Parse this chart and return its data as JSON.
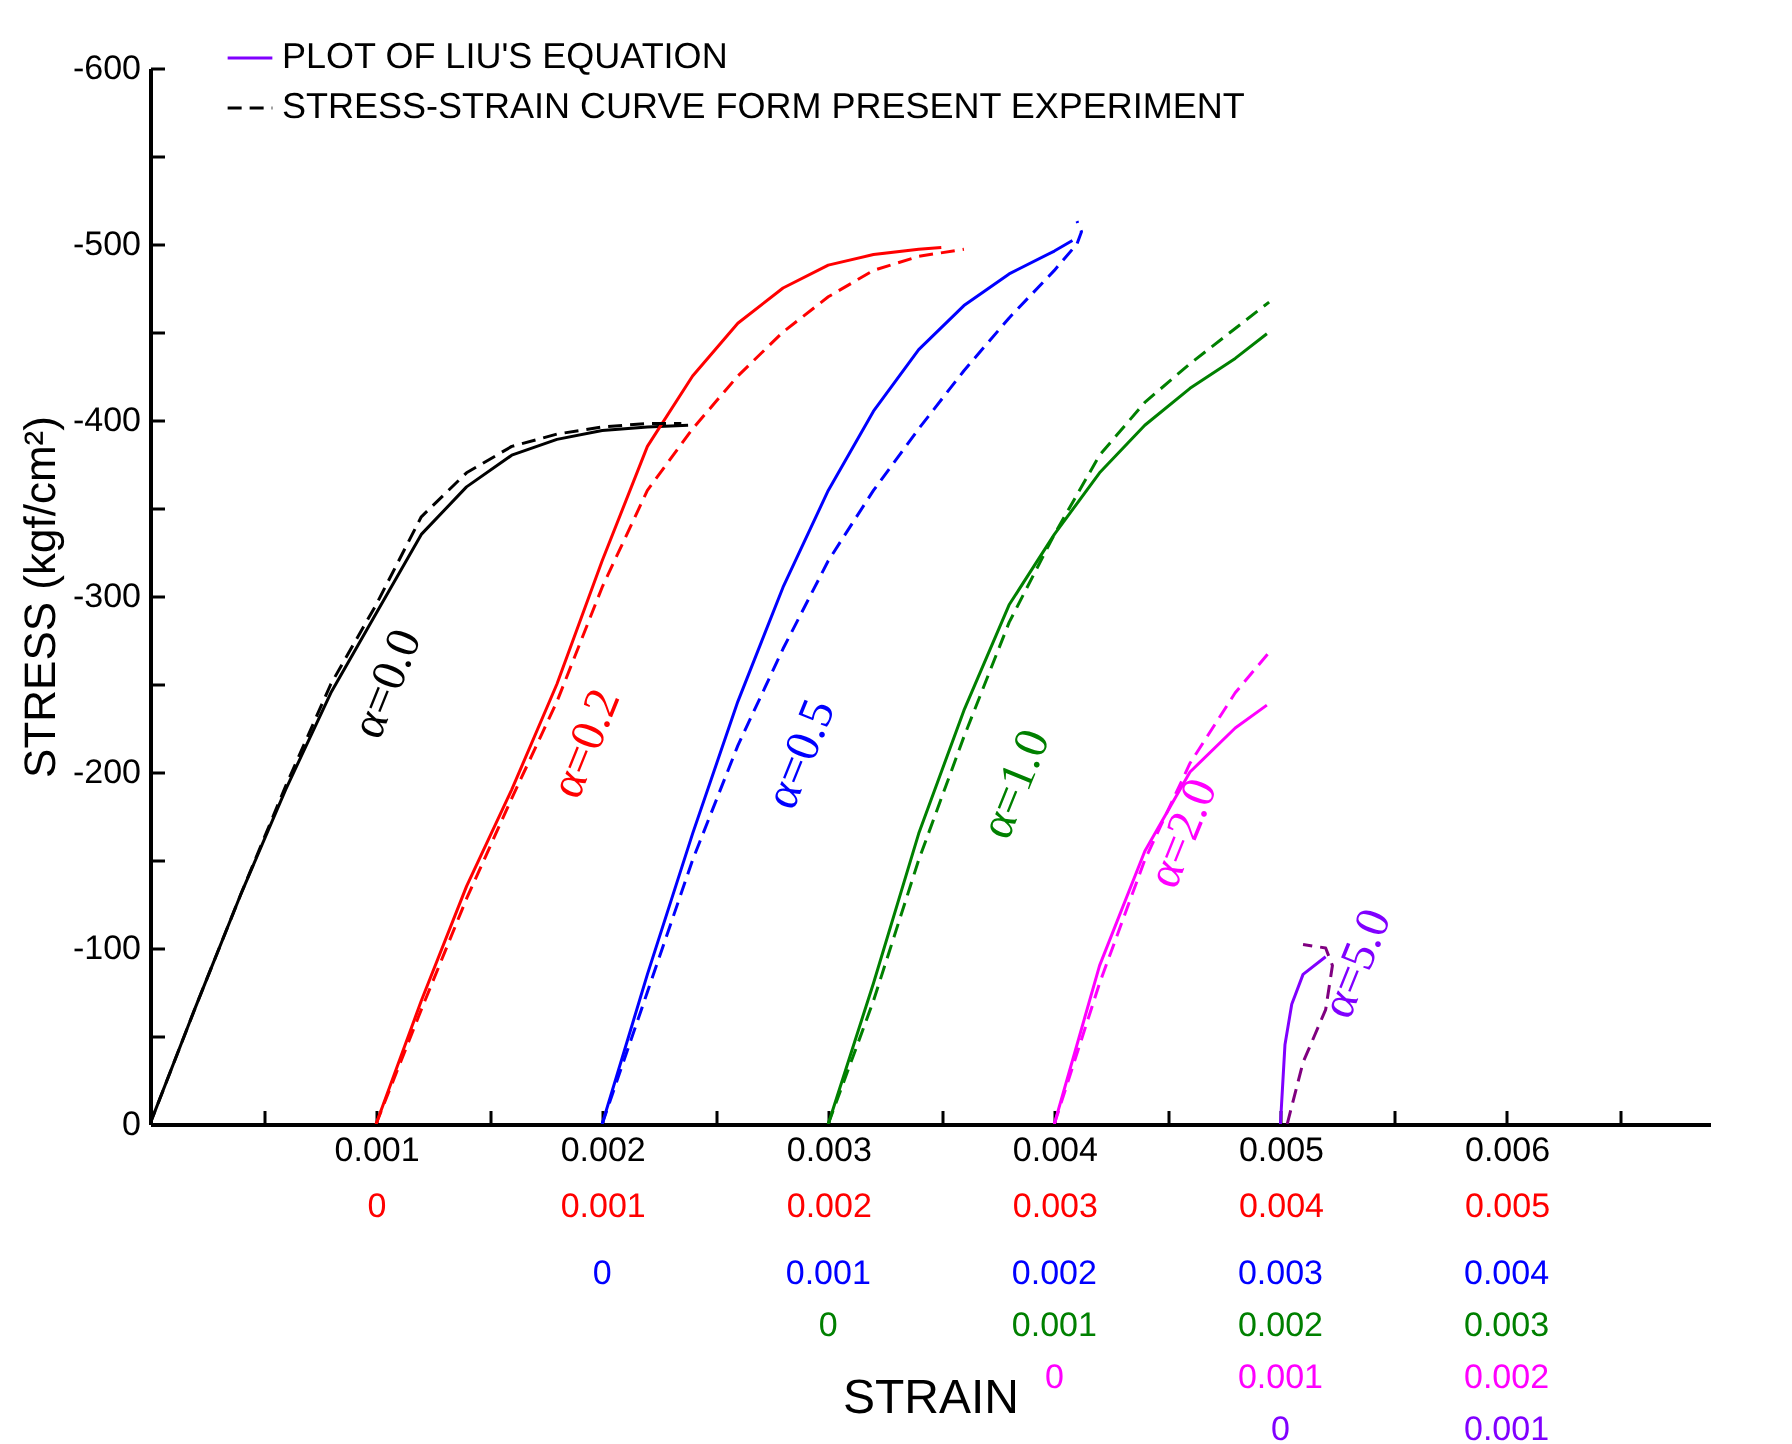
{
  "chart_data": {
    "type": "line",
    "xlabel": "STRAIN",
    "ylabel": "STRESS (kgf/cm²)",
    "xlim": [
      0,
      0.0069
    ],
    "ylim": [
      0,
      -600
    ],
    "xticks": [
      {
        "value": 0.0005,
        "label": null
      },
      0.001,
      {
        "value": 0.0015,
        "label": null
      },
      0.002,
      {
        "value": 0.0025,
        "label": null
      },
      0.003,
      {
        "value": 0.0035,
        "label": null
      },
      0.004,
      {
        "value": 0.0045,
        "label": null
      },
      0.005,
      {
        "value": 0.0055,
        "label": null
      },
      0.006,
      {
        "value": 0.0065,
        "label": null
      }
    ],
    "x2lim": [
      -0.001,
      0.0059
    ],
    "x2ticks": [
      0,
      0.001,
      0.002,
      0.003,
      0.004,
      0.005
    ],
    "yticks": [
      0,
      {
        "value": -50,
        "label": null
      },
      -100,
      {
        "value": -150,
        "label": null
      },
      -200,
      {
        "value": -250,
        "label": null
      },
      -300,
      {
        "value": -350,
        "label": null
      },
      -400,
      {
        "value": -450,
        "label": null
      },
      -500,
      {
        "value": -550,
        "label": null
      },
      -600
    ],
    "legend": "top",
    "grid": false,
    "series": [
      {
        "color": "#000000",
        "line_style": "solid",
        "x": [
          0,
          0.0002,
          0.0004,
          0.0006,
          0.0008,
          0.001,
          0.0012,
          0.0014,
          0.0016,
          0.0018,
          0.002,
          0.0022,
          0.00238
        ],
        "values": [
          0,
          -66,
          -130,
          -190,
          -245,
          -290,
          -335,
          -362,
          -380,
          -389,
          -394,
          -396,
          -397
        ]
      },
      {
        "color": "#ff0000",
        "line_style": "solid",
        "x": [
          0.001,
          0.0012,
          0.0014,
          0.0016,
          0.0018,
          0.002,
          0.0022,
          0.0024,
          0.0026,
          0.0028,
          0.003,
          0.0032,
          0.0034,
          0.0035
        ],
        "values": [
          0,
          -70,
          -135,
          -190,
          -250,
          -320,
          -385,
          -425,
          -455,
          -475,
          -488,
          -494,
          -497,
          -498
        ]
      },
      {
        "color": "#0000ff",
        "line_style": "solid",
        "x": [
          0.002,
          0.0022,
          0.0024,
          0.0026,
          0.0028,
          0.003,
          0.0032,
          0.0034,
          0.0036,
          0.0038,
          0.004,
          0.00408
        ],
        "values": [
          0,
          -85,
          -165,
          -240,
          -305,
          -360,
          -405,
          -440,
          -465,
          -483,
          -496,
          -502
        ]
      },
      {
        "color": "#008000",
        "line_style": "solid",
        "x": [
          0.003,
          0.0032,
          0.0034,
          0.0036,
          0.0038,
          0.004,
          0.0042,
          0.0044,
          0.0046,
          0.0048,
          0.00494
        ],
        "values": [
          0,
          -80,
          -165,
          -235,
          -295,
          -335,
          -370,
          -397,
          -418,
          -435,
          -449
        ]
      },
      {
        "color": "#ff00ff",
        "line_style": "solid",
        "x": [
          0.004,
          0.0042,
          0.0044,
          0.0046,
          0.0048,
          0.00494
        ],
        "values": [
          0,
          -90,
          -155,
          -200,
          -225,
          -238
        ]
      },
      {
        "name": "PLOT OF LIU'S EQUATION",
        "color": "#8000ff",
        "line_style": "solid",
        "x": [
          0.005,
          0.00502,
          0.00505,
          0.0051,
          0.0052
        ],
        "values": [
          0,
          -45,
          -68,
          -85,
          -95
        ]
      },
      {
        "name": "STRESS-STRAIN CURVE FORM PRESENT EXPERIMENT",
        "color": "#000000",
        "line_style": "dashed",
        "x": [
          0,
          0.0002,
          0.0004,
          0.0006,
          0.0008,
          0.001,
          0.0012,
          0.0014,
          0.0016,
          0.0018,
          0.002,
          0.0022,
          0.00235
        ],
        "values": [
          0,
          -66,
          -130,
          -192,
          -250,
          -295,
          -345,
          -370,
          -385,
          -392,
          -396,
          -398,
          -398
        ]
      },
      {
        "color": "#ff0000",
        "line_style": "dashed",
        "x": [
          0.001,
          0.0012,
          0.0014,
          0.0016,
          0.0018,
          0.002,
          0.0022,
          0.0024,
          0.0026,
          0.0028,
          0.003,
          0.0032,
          0.0034,
          0.0036
        ],
        "values": [
          0,
          -65,
          -128,
          -185,
          -240,
          -305,
          -360,
          -395,
          -425,
          -450,
          -470,
          -485,
          -493,
          -497
        ]
      },
      {
        "color": "#0000ff",
        "line_style": "dashed",
        "x": [
          0.002,
          0.0022,
          0.0024,
          0.0026,
          0.0028,
          0.003,
          0.0032,
          0.0034,
          0.0036,
          0.0038,
          0.004,
          0.0041,
          0.00412,
          0.0041
        ],
        "values": [
          0,
          -75,
          -150,
          -215,
          -270,
          -320,
          -360,
          -395,
          -428,
          -458,
          -485,
          -500,
          -507,
          -513
        ]
      },
      {
        "color": "#008000",
        "line_style": "dashed",
        "x": [
          0.003,
          0.0032,
          0.0034,
          0.0036,
          0.0038,
          0.004,
          0.0042,
          0.0044,
          0.0046,
          0.0048,
          0.00495
        ],
        "values": [
          0,
          -70,
          -150,
          -220,
          -285,
          -335,
          -380,
          -410,
          -432,
          -452,
          -467
        ]
      },
      {
        "color": "#ff00ff",
        "line_style": "dashed",
        "x": [
          0.004,
          0.0042,
          0.0044,
          0.0046,
          0.0048,
          0.00495
        ],
        "values": [
          0,
          -80,
          -150,
          -205,
          -245,
          -268
        ]
      },
      {
        "color": "#800080",
        "line_style": "dashed",
        "x": [
          0.00503,
          0.0051,
          0.0052,
          0.00523,
          0.0052,
          0.0051
        ],
        "values": [
          0,
          -35,
          -65,
          -90,
          -100,
          -102
        ]
      }
    ],
    "annotations": [
      "α=0.0",
      "α=0.2",
      "α=0.5",
      "α=1.0",
      "α=2.0",
      "α=5.0",
      "0",
      "0.001",
      "0.002",
      "0.003",
      "0.004",
      "0",
      "0.001",
      "0.002",
      "0.003",
      "0",
      "0.001",
      "0.002",
      "0",
      "0.001"
    ]
  }
}
